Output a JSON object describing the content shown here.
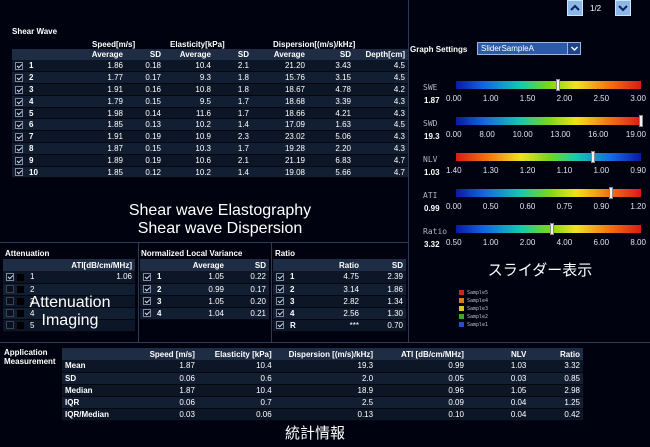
{
  "nav": {
    "page": "1/2"
  },
  "shear_wave": {
    "title": "Shear Wave",
    "groups": {
      "speed": "Speed[m/s]",
      "elasticity": "Elasticity[kPa]",
      "dispersion": "Dispersion[(m/s)/kHz]"
    },
    "cols": {
      "average": "Average",
      "sd": "SD",
      "depth": "Depth[cm]"
    },
    "rows": [
      {
        "n": "1",
        "s_avg": "1.86",
        "s_sd": "0.18",
        "e_avg": "10.4",
        "e_sd": "2.1",
        "d_avg": "21.20",
        "d_sd": "3.43",
        "depth": "4.5"
      },
      {
        "n": "2",
        "s_avg": "1.77",
        "s_sd": "0.17",
        "e_avg": "9.3",
        "e_sd": "1.8",
        "d_avg": "15.76",
        "d_sd": "3.15",
        "depth": "4.5"
      },
      {
        "n": "3",
        "s_avg": "1.91",
        "s_sd": "0.16",
        "e_avg": "10.8",
        "e_sd": "1.8",
        "d_avg": "18.67",
        "d_sd": "4.78",
        "depth": "4.2"
      },
      {
        "n": "4",
        "s_avg": "1.79",
        "s_sd": "0.15",
        "e_avg": "9.5",
        "e_sd": "1.7",
        "d_avg": "18.68",
        "d_sd": "3.39",
        "depth": "4.3"
      },
      {
        "n": "5",
        "s_avg": "1.98",
        "s_sd": "0.14",
        "e_avg": "11.6",
        "e_sd": "1.7",
        "d_avg": "18.66",
        "d_sd": "4.21",
        "depth": "4.3"
      },
      {
        "n": "6",
        "s_avg": "1.85",
        "s_sd": "0.13",
        "e_avg": "10.2",
        "e_sd": "1.4",
        "d_avg": "17.09",
        "d_sd": "1.63",
        "depth": "4.5"
      },
      {
        "n": "7",
        "s_avg": "1.91",
        "s_sd": "0.19",
        "e_avg": "10.9",
        "e_sd": "2.3",
        "d_avg": "23.02",
        "d_sd": "5.06",
        "depth": "4.3"
      },
      {
        "n": "8",
        "s_avg": "1.87",
        "s_sd": "0.15",
        "e_avg": "10.3",
        "e_sd": "1.7",
        "d_avg": "19.28",
        "d_sd": "2.20",
        "depth": "4.3"
      },
      {
        "n": "9",
        "s_avg": "1.89",
        "s_sd": "0.19",
        "e_avg": "10.6",
        "e_sd": "2.1",
        "d_avg": "21.19",
        "d_sd": "6.83",
        "depth": "4.7"
      },
      {
        "n": "10",
        "s_avg": "1.85",
        "s_sd": "0.12",
        "e_avg": "10.2",
        "e_sd": "1.4",
        "d_avg": "19.08",
        "d_sd": "5.66",
        "depth": "4.7"
      }
    ],
    "caption_line1": "Shear wave Elastography",
    "caption_line2": "Shear wave Dispersion"
  },
  "attenuation": {
    "title": "Attenuation",
    "col": "ATI[dB/cm/MHz]",
    "rows": [
      {
        "n": "1",
        "v": "1.06"
      },
      {
        "n": "2",
        "v": ""
      },
      {
        "n": "3",
        "v": ""
      },
      {
        "n": "4",
        "v": ""
      },
      {
        "n": "5",
        "v": ""
      }
    ],
    "caption_line1": "Attenuation",
    "caption_line2": "Imaging"
  },
  "nlv": {
    "title": "Normalized Local Variance",
    "cols": {
      "average": "Average",
      "sd": "SD"
    },
    "rows": [
      {
        "n": "1",
        "avg": "1.05",
        "sd": "0.22"
      },
      {
        "n": "2",
        "avg": "0.99",
        "sd": "0.17"
      },
      {
        "n": "3",
        "avg": "1.05",
        "sd": "0.20"
      },
      {
        "n": "4",
        "avg": "1.04",
        "sd": "0.21"
      }
    ]
  },
  "ratio": {
    "title": "Ratio",
    "cols": {
      "ratio": "Ratio",
      "sd": "SD"
    },
    "rows": [
      {
        "n": "1",
        "ratio": "4.75",
        "sd": "2.39"
      },
      {
        "n": "2",
        "ratio": "3.14",
        "sd": "1.86"
      },
      {
        "n": "3",
        "ratio": "2.82",
        "sd": "1.34"
      },
      {
        "n": "4",
        "ratio": "2.56",
        "sd": "1.30"
      },
      {
        "n": "R",
        "ratio": "***",
        "sd": "0.70"
      }
    ]
  },
  "graph_settings": {
    "label": "Graph Settings",
    "select_value": "SliderSampleA",
    "sliders": [
      {
        "name": "SWE",
        "value": "1.87",
        "ticks": [
          "0.00",
          "1.00",
          "1.50",
          "2.00",
          "2.50",
          "3.00"
        ],
        "fraction": 0.55,
        "gradient": "fwd"
      },
      {
        "name": "SWD",
        "value": "19.3",
        "ticks": [
          "0.00",
          "8.00",
          "10.00",
          "13.00",
          "16.00",
          "19.00"
        ],
        "fraction": 1.0,
        "gradient": "fwd"
      },
      {
        "name": "NLV",
        "value": "1.03",
        "ticks": [
          "1.40",
          "1.30",
          "1.20",
          "1.10",
          "1.00",
          "0.90"
        ],
        "fraction": 0.74,
        "gradient": "rev"
      },
      {
        "name": "ATI",
        "value": "0.99",
        "ticks": [
          "0.00",
          "0.50",
          "0.60",
          "0.75",
          "0.90",
          "1.20"
        ],
        "fraction": 0.84,
        "gradient": "fwd"
      },
      {
        "name": "Ratio",
        "value": "3.32",
        "ticks": [
          "0.50",
          "1.00",
          "2.00",
          "4.00",
          "6.00",
          "8.00"
        ],
        "fraction": 0.52,
        "gradient": "fwd"
      }
    ],
    "caption": "スライダー表示",
    "legend": [
      {
        "name": "Sample5",
        "color": "#c8281e"
      },
      {
        "name": "Sample4",
        "color": "#e07a1e"
      },
      {
        "name": "Sample3",
        "color": "#d6c81e"
      },
      {
        "name": "Sample2",
        "color": "#3aa832"
      },
      {
        "name": "Sample1",
        "color": "#2a4ad0"
      }
    ]
  },
  "measurement": {
    "title_line1": "Application",
    "title_line2": "Measurement",
    "cols": [
      "Speed [m/s]",
      "Elasticity [kPa]",
      "Dispersion [(m/s)/kHz]",
      "ATI [dB/cm/MHz]",
      "NLV",
      "Ratio"
    ],
    "rows": [
      {
        "label": "Mean",
        "v": [
          "1.87",
          "10.4",
          "19.3",
          "0.99",
          "1.03",
          "3.32"
        ]
      },
      {
        "label": "SD",
        "v": [
          "0.06",
          "0.6",
          "2.0",
          "0.05",
          "0.03",
          "0.85"
        ]
      },
      {
        "label": "Median",
        "v": [
          "1.87",
          "10.4",
          "18.9",
          "0.96",
          "1.05",
          "2.98"
        ]
      },
      {
        "label": "IQR",
        "v": [
          "0.06",
          "0.7",
          "2.5",
          "0.09",
          "0.04",
          "1.25"
        ]
      },
      {
        "label": "IQR/Median",
        "v": [
          "0.03",
          "0.06",
          "0.13",
          "0.10",
          "0.04",
          "0.42"
        ]
      }
    ],
    "caption": "統計情報"
  }
}
